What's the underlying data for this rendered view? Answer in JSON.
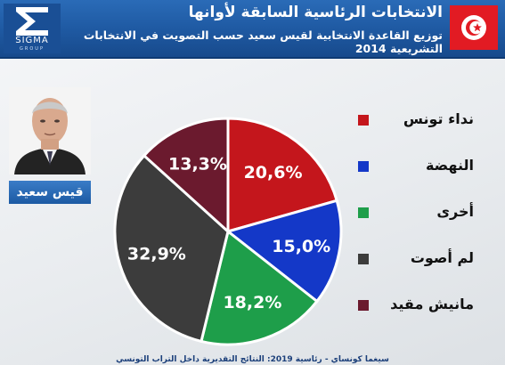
{
  "header": {
    "title": "الانتخابات الرئاسية السابقة لأوانها",
    "subtitle": "توزيع القاعدة الانتخابية لقيس سعيد حسب التصويت في الانتخابات التشريعية 2014",
    "logo_name": "SIGMA",
    "logo_tagline": "GROUP",
    "flag_icon": "tunisia-flag-icon"
  },
  "candidate": {
    "name": "قيس سعيد"
  },
  "footer": {
    "text": "سيغما كونساي - رئاسية 2019: النتائج التقديرية داخل التراب التونسي"
  },
  "colors": {
    "header_blue": "#1f5aa3",
    "nidaa": "#c4161c",
    "nahdha": "#1438c8",
    "other": "#1e9e4a",
    "no_vote": "#3c3c3c",
    "useless": "#6b1a2e"
  },
  "chart_data": {
    "type": "pie",
    "title": "",
    "slices": [
      {
        "label": "نداء تونس",
        "value": 20.6,
        "display": "20,6%",
        "color": "#c4161c"
      },
      {
        "label": "النهضة",
        "value": 15.0,
        "display": "15,0%",
        "color": "#1438c8"
      },
      {
        "label": "أخرى",
        "value": 18.2,
        "display": "18,2%",
        "color": "#1e9e4a"
      },
      {
        "label": "لم أصوت",
        "value": 32.9,
        "display": "32,9%",
        "color": "#3c3c3c"
      },
      {
        "label": "مانيش مقيد",
        "value": 13.3,
        "display": "13,3%",
        "color": "#6b1a2e"
      }
    ],
    "legend_position": "right"
  }
}
